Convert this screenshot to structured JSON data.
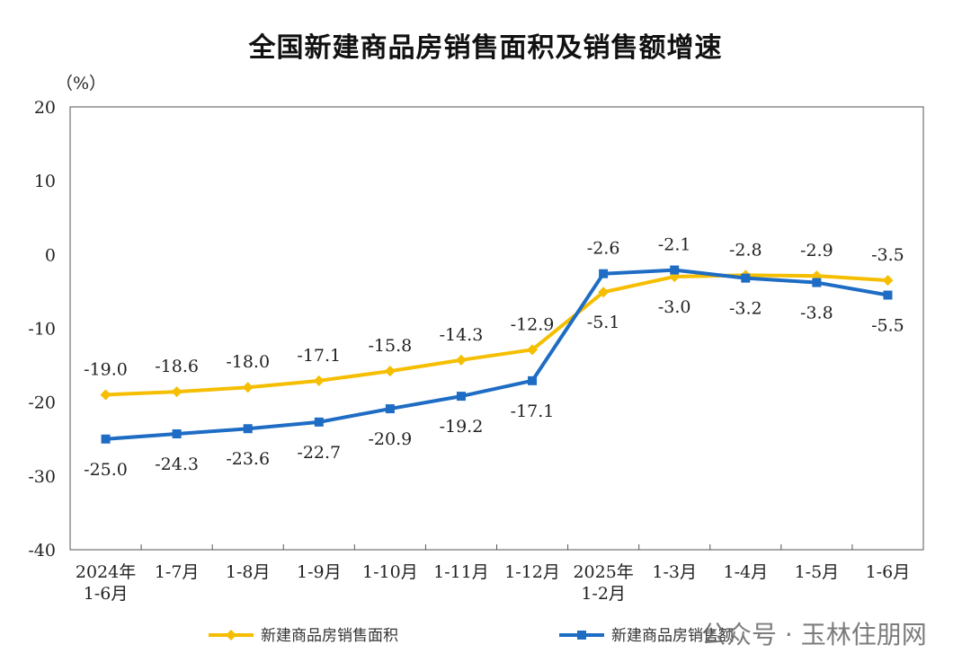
{
  "chart_data": {
    "type": "line",
    "title": "全国新建商品房销售面积及销售额增速",
    "ylabel": "（%）",
    "ylim": [
      -40,
      20
    ],
    "yticks": [
      20,
      10,
      0,
      -10,
      -20,
      -30,
      -40
    ],
    "categories": [
      "2024年\n1-6月",
      "1-7月",
      "1-8月",
      "1-9月",
      "1-10月",
      "1-11月",
      "1-12月",
      "2025年\n1-2月",
      "1-3月",
      "1-4月",
      "1-5月",
      "1-6月"
    ],
    "grid": false,
    "legend": "bottom",
    "series": [
      {
        "name": "新建商品房销售面积",
        "color": "#F5BE00",
        "marker": "diamond",
        "values": [
          -19.0,
          -18.6,
          -18.0,
          -17.1,
          -15.8,
          -14.3,
          -12.9,
          -5.1,
          -3.0,
          -2.8,
          -2.9,
          -3.5
        ]
      },
      {
        "name": "新建商品房销售额",
        "color": "#1E6CC4",
        "marker": "square",
        "values": [
          -25.0,
          -24.3,
          -23.6,
          -22.7,
          -20.9,
          -19.2,
          -17.1,
          -2.6,
          -2.1,
          -3.2,
          -3.8,
          -5.5
        ]
      }
    ]
  },
  "watermark": "公众号 · 玉林住朋网"
}
